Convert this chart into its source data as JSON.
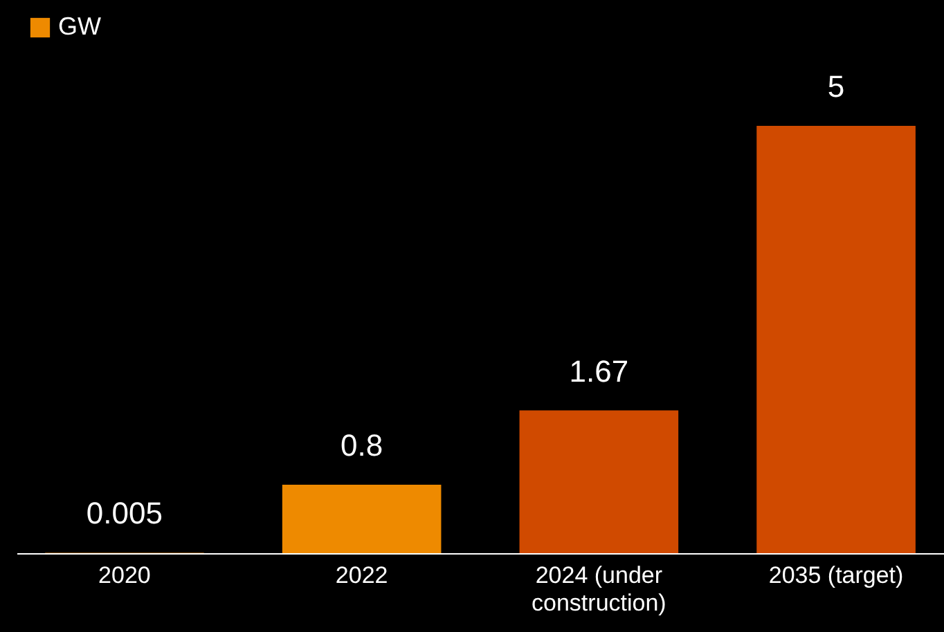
{
  "chart_data": {
    "type": "bar",
    "categories": [
      "2020",
      "2022",
      "2024 (under construction)",
      "2035 (target)"
    ],
    "series": [
      {
        "name": "GW",
        "color": "#ee8a00",
        "colors": [
          "#ee8a00",
          "#ee8a00",
          "#d04a00",
          "#d04a00"
        ],
        "values": [
          0.005,
          0.8,
          1.67,
          5
        ]
      }
    ],
    "data_labels": true,
    "legend": "top left"
  }
}
